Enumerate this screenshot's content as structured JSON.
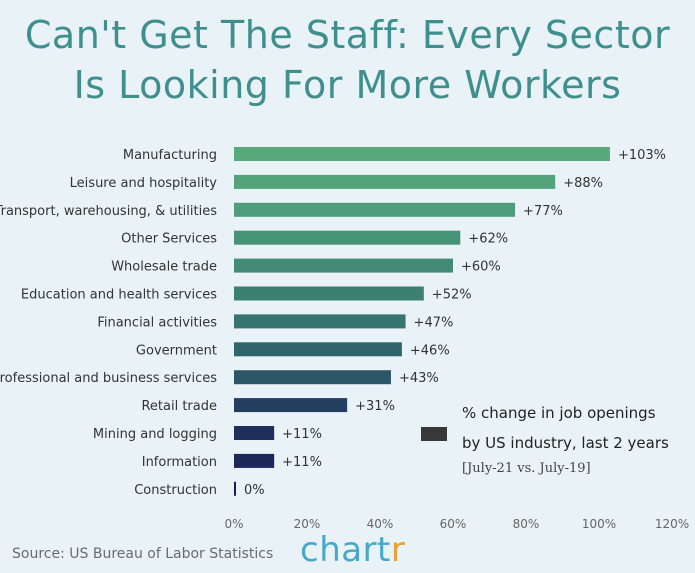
{
  "title": {
    "line1": "Can't Get The Staff: Every Sector",
    "line2": "Is Looking For More Workers"
  },
  "legend": {
    "line1": "% change in job openings",
    "line2": "by US industry, last 2 years",
    "line3": "[July-21 vs. July-19]",
    "swatch_color": "#383838"
  },
  "footer": {
    "source": "Source: US Bureau of Labor Statistics",
    "brand_main": "chart",
    "brand_accent": "r"
  },
  "chart_data": {
    "type": "bar",
    "orientation": "horizontal",
    "categories": [
      "Manufacturing",
      "Leisure and hospitality",
      "Transport, warehousing, & utilities",
      "Other Services",
      "Wholesale trade",
      "Education and health services",
      "Financial activities",
      "Government",
      "Professional and business services",
      "Retail trade",
      "Mining and logging",
      "Information",
      "Construction"
    ],
    "values": [
      103,
      88,
      77,
      62,
      60,
      52,
      47,
      46,
      43,
      31,
      11,
      11,
      0
    ],
    "data_labels": [
      "+103%",
      "+88%",
      "+77%",
      "+62%",
      "+60%",
      "+52%",
      "+47%",
      "+46%",
      "+43%",
      "+31%",
      "+11%",
      "+11%",
      "0%"
    ],
    "colors": [
      "#58a97b",
      "#54a37b",
      "#4e9c79",
      "#479377",
      "#438b75",
      "#3c8072",
      "#37736f",
      "#30656b",
      "#2c5767",
      "#243e60",
      "#1e2f5b",
      "#1b2858",
      "#172052"
    ],
    "xlim": [
      0,
      120
    ],
    "xticks": [
      "0%",
      "20%",
      "40%",
      "60%",
      "80%",
      "100%",
      "120%"
    ],
    "grid": false,
    "legend_position": "lower-right"
  }
}
